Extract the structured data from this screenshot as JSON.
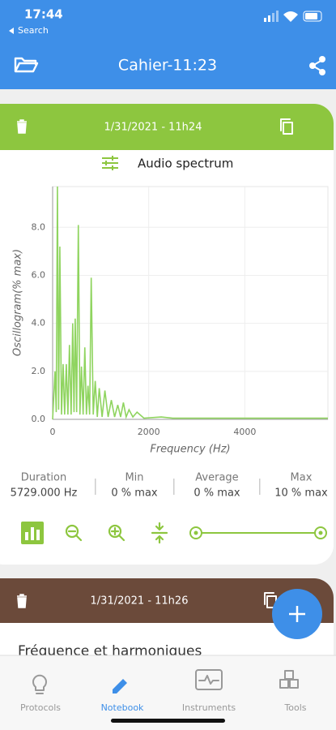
{
  "status_bar": {
    "time": "17:44",
    "back": "Search"
  },
  "header": {
    "title": "Cahier-11:23"
  },
  "cards": [
    {
      "date": "1/31/2021 - 11h24",
      "title": "Audio spectrum",
      "chart_data": {
        "type": "line",
        "x_label": "Frequency (Hz)",
        "y_label": "Oscillogram(% max)",
        "x": [
          0,
          50,
          75,
          100,
          125,
          150,
          185,
          218,
          250,
          285,
          318,
          350,
          385,
          418,
          445,
          470,
          500,
          535,
          568,
          600,
          635,
          670,
          703,
          736,
          770,
          803,
          845,
          887,
          930,
          970,
          1030,
          1088,
          1155,
          1222,
          1290,
          1356,
          1415,
          1473,
          1530,
          1590,
          1670,
          1757,
          1900,
          2260,
          2500,
          5729
        ],
        "series": [
          {
            "color": "#8fd45f",
            "values": [
              0,
              2.0,
              0.3,
              9.7,
              0.4,
              7.2,
              0.2,
              2.3,
              0.2,
              2.3,
              0.2,
              3.1,
              0.2,
              4.0,
              0.3,
              4.2,
              0.3,
              8.1,
              0.2,
              2.2,
              0.2,
              3.0,
              0.2,
              1.4,
              0.2,
              5.9,
              0.2,
              1.6,
              0.1,
              1.3,
              0.1,
              1.2,
              0.1,
              0.8,
              0.1,
              0.6,
              0.1,
              0.7,
              0.1,
              0.4,
              0.1,
              0.3,
              0.05,
              0.1,
              0.05,
              0.05
            ]
          }
        ],
        "xlim": [
          0,
          5729
        ],
        "ylim": [
          0,
          9.7
        ],
        "xticks": [
          0,
          2000,
          4000
        ],
        "yticks": [
          {
            "value": 0,
            "label": "0.0"
          },
          {
            "value": 2,
            "label": "2.0"
          },
          {
            "value": 4,
            "label": "4.0"
          },
          {
            "value": 6,
            "label": "6.0"
          },
          {
            "value": 8,
            "label": "8.0"
          }
        ],
        "grid": true
      },
      "stats": [
        {
          "label": "Duration",
          "value": "5729.000 Hz"
        },
        {
          "label": "Min",
          "value": "0 % max"
        },
        {
          "label": "Average",
          "value": "0 % max"
        },
        {
          "label": "Max",
          "value": "10 % max"
        }
      ]
    },
    {
      "date": "1/31/2021 - 11h26",
      "title": "Fréquence et harmoniques"
    }
  ],
  "tabs": [
    {
      "label": "Protocols"
    },
    {
      "label": "Notebook"
    },
    {
      "label": "Instruments"
    },
    {
      "label": "Tools"
    }
  ]
}
